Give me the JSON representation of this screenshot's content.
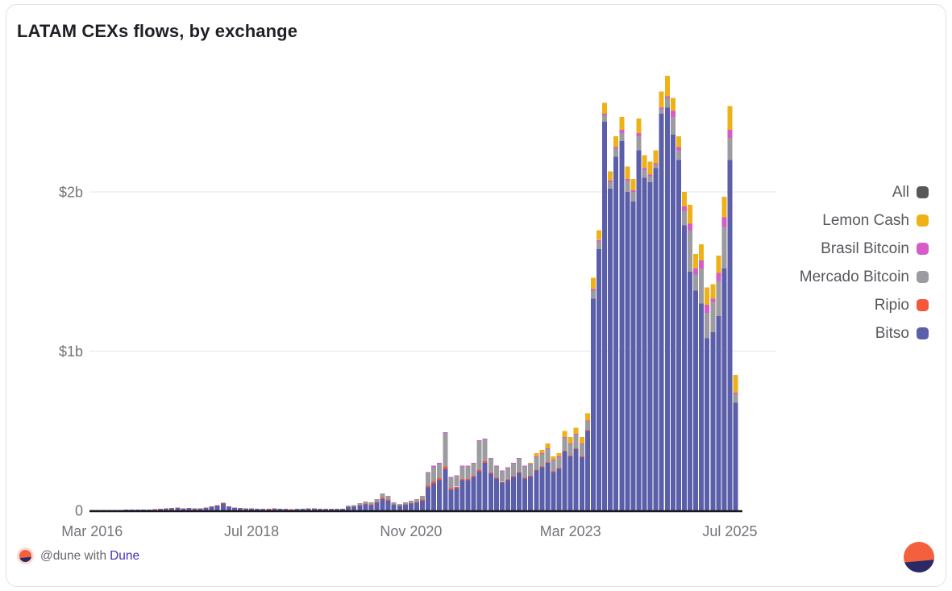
{
  "card": {
    "title": "LATAM CEXs flows, by exchange"
  },
  "footer": {
    "attribution_prefix": "@dune with",
    "attribution_link": "Dune"
  },
  "colors": {
    "background": "#ffffff",
    "card_border": "#dfe0e8",
    "title": "#1f2026",
    "axis_line": "#19181d",
    "gridline": "#e7e9ee",
    "axis_label": "#71747a",
    "legend_label": "#55575c",
    "link": "#4334b1",
    "logo_orange": "#f4603e",
    "logo_navy": "#2b2a66",
    "logo_ring": "#fbd9cf"
  },
  "chart_data": {
    "type": "bar",
    "stacked": true,
    "title": "LATAM CEXs flows, by exchange",
    "x_start": "Mar 2016",
    "x_frequency": "monthly",
    "x_month_count": 114,
    "x_tick_labels": [
      "Mar 2016",
      "Jul 2018",
      "Nov 2020",
      "Mar 2023",
      "Jul 2025"
    ],
    "x_tick_month_indices": [
      0,
      28,
      56,
      84,
      112
    ],
    "y_axis": {
      "unit": "USD billions",
      "ylim": [
        0,
        2.85
      ],
      "ticks": [
        {
          "label": "0",
          "value": 0
        },
        {
          "label": "$1b",
          "value": 1
        },
        {
          "label": "$2b",
          "value": 2
        }
      ]
    },
    "grid": "horizontal",
    "legend_position": "right",
    "legend": [
      {
        "label": "All",
        "color": "#58585a"
      },
      {
        "label": "Lemon Cash",
        "color": "#efb118"
      },
      {
        "label": "Brasil Bitcoin",
        "color": "#d65cc8"
      },
      {
        "label": "Mercado Bitcoin",
        "color": "#9c9ca0"
      },
      {
        "label": "Ripio",
        "color": "#f4583b"
      },
      {
        "label": "Bitso",
        "color": "#5b5ea9"
      }
    ],
    "series_colors": {
      "All": "#58585a",
      "Lemon Cash": "#efb118",
      "Brasil Bitcoin": "#d65cc8",
      "Mercado Bitcoin": "#9c9ca0",
      "Ripio": "#f4583b",
      "Bitso": "#5b5ea9"
    },
    "stack_order_bottom_to_top": [
      "Bitso",
      "Ripio",
      "Mercado Bitcoin",
      "Brasil Bitcoin",
      "Lemon Cash"
    ],
    "values_billions_by_month": [
      [
        0.002,
        0,
        0,
        0,
        0
      ],
      [
        0.002,
        0,
        0,
        0,
        0
      ],
      [
        0.003,
        0,
        0,
        0,
        0
      ],
      [
        0.003,
        0,
        0,
        0,
        0
      ],
      [
        0.003,
        0,
        0,
        0,
        0
      ],
      [
        0.003,
        0,
        0,
        0,
        0
      ],
      [
        0.004,
        0,
        0,
        0,
        0
      ],
      [
        0.004,
        0,
        0,
        0,
        0
      ],
      [
        0.004,
        0,
        0,
        0,
        0
      ],
      [
        0.005,
        0,
        0,
        0,
        0
      ],
      [
        0.005,
        0.001,
        0,
        0,
        0
      ],
      [
        0.006,
        0.001,
        0,
        0,
        0
      ],
      [
        0.008,
        0.001,
        0,
        0,
        0
      ],
      [
        0.01,
        0.002,
        0,
        0,
        0
      ],
      [
        0.013,
        0.002,
        0,
        0,
        0
      ],
      [
        0.015,
        0.002,
        0,
        0,
        0
      ],
      [
        0.01,
        0.002,
        0,
        0,
        0
      ],
      [
        0.013,
        0.002,
        0,
        0,
        0
      ],
      [
        0.01,
        0.002,
        0,
        0,
        0
      ],
      [
        0.01,
        0.002,
        0,
        0,
        0
      ],
      [
        0.015,
        0.003,
        0,
        0,
        0
      ],
      [
        0.022,
        0.003,
        0,
        0,
        0
      ],
      [
        0.028,
        0.004,
        0,
        0,
        0
      ],
      [
        0.042,
        0.005,
        0,
        0,
        0
      ],
      [
        0.022,
        0.004,
        0,
        0,
        0
      ],
      [
        0.015,
        0.003,
        0,
        0,
        0
      ],
      [
        0.012,
        0.002,
        0,
        0,
        0
      ],
      [
        0.01,
        0.002,
        0,
        0,
        0
      ],
      [
        0.01,
        0.002,
        0,
        0,
        0
      ],
      [
        0.009,
        0.002,
        0,
        0,
        0
      ],
      [
        0.008,
        0.001,
        0,
        0,
        0
      ],
      [
        0.008,
        0.001,
        0,
        0,
        0
      ],
      [
        0.011,
        0.002,
        0,
        0,
        0
      ],
      [
        0.009,
        0.002,
        0,
        0,
        0
      ],
      [
        0.008,
        0.001,
        0,
        0,
        0
      ],
      [
        0.007,
        0.001,
        0,
        0,
        0
      ],
      [
        0.008,
        0.001,
        0,
        0,
        0
      ],
      [
        0.009,
        0.002,
        0,
        0,
        0
      ],
      [
        0.011,
        0.002,
        0,
        0,
        0
      ],
      [
        0.011,
        0.002,
        0,
        0,
        0
      ],
      [
        0.009,
        0.002,
        0,
        0,
        0
      ],
      [
        0.008,
        0.002,
        0,
        0,
        0
      ],
      [
        0.008,
        0.001,
        0,
        0,
        0
      ],
      [
        0.008,
        0.002,
        0,
        0,
        0
      ],
      [
        0.009,
        0.002,
        0,
        0,
        0
      ],
      [
        0.02,
        0.003,
        0.007,
        0,
        0
      ],
      [
        0.022,
        0.003,
        0.008,
        0,
        0
      ],
      [
        0.03,
        0.004,
        0.011,
        0,
        0
      ],
      [
        0.038,
        0.005,
        0.013,
        0,
        0
      ],
      [
        0.034,
        0.004,
        0.012,
        0,
        0
      ],
      [
        0.048,
        0.005,
        0.017,
        0,
        0
      ],
      [
        0.07,
        0.01,
        0.027,
        0,
        0
      ],
      [
        0.06,
        0.008,
        0.022,
        0,
        0
      ],
      [
        0.035,
        0.004,
        0.011,
        0,
        0
      ],
      [
        0.028,
        0.003,
        0.009,
        0,
        0
      ],
      [
        0.035,
        0.004,
        0.011,
        0,
        0
      ],
      [
        0.042,
        0.004,
        0.014,
        0,
        0
      ],
      [
        0.049,
        0.005,
        0.016,
        0,
        0
      ],
      [
        0.062,
        0.006,
        0.022,
        0,
        0
      ],
      [
        0.145,
        0.01,
        0.08,
        0.005,
        0
      ],
      [
        0.17,
        0.012,
        0.09,
        0.008,
        0
      ],
      [
        0.19,
        0.012,
        0.09,
        0.008,
        0
      ],
      [
        0.26,
        0.015,
        0.21,
        0.005,
        0
      ],
      [
        0.13,
        0.01,
        0.065,
        0.005,
        0
      ],
      [
        0.14,
        0.008,
        0.067,
        0.005,
        0
      ],
      [
        0.19,
        0.008,
        0.077,
        0.005,
        0
      ],
      [
        0.19,
        0.008,
        0.077,
        0.005,
        0
      ],
      [
        0.21,
        0.008,
        0.077,
        0.005,
        0
      ],
      [
        0.245,
        0.01,
        0.18,
        0.005,
        0
      ],
      [
        0.3,
        0.01,
        0.135,
        0.005,
        0
      ],
      [
        0.23,
        0.008,
        0.087,
        0.005,
        0
      ],
      [
        0.2,
        0.006,
        0.069,
        0.005,
        0
      ],
      [
        0.175,
        0.006,
        0.064,
        0.005,
        0
      ],
      [
        0.19,
        0.006,
        0.069,
        0.005,
        0
      ],
      [
        0.21,
        0.006,
        0.079,
        0.005,
        0
      ],
      [
        0.235,
        0.006,
        0.084,
        0.005,
        0
      ],
      [
        0.2,
        0.005,
        0.07,
        0.005,
        0
      ],
      [
        0.213,
        0.005,
        0.072,
        0.005,
        0.005
      ],
      [
        0.25,
        0.005,
        0.08,
        0.005,
        0.02
      ],
      [
        0.27,
        0.005,
        0.08,
        0.005,
        0.02
      ],
      [
        0.3,
        0.005,
        0.08,
        0.005,
        0.03
      ],
      [
        0.24,
        0.005,
        0.07,
        0.005,
        0.02
      ],
      [
        0.26,
        0.005,
        0.07,
        0.005,
        0.02
      ],
      [
        0.37,
        0.005,
        0.08,
        0.005,
        0.04
      ],
      [
        0.34,
        0.005,
        0.07,
        0.005,
        0.04
      ],
      [
        0.385,
        0.005,
        0.085,
        0.005,
        0.04
      ],
      [
        0.335,
        0.004,
        0.076,
        0.005,
        0.04
      ],
      [
        0.5,
        0.004,
        0.056,
        0.005,
        0.045
      ],
      [
        1.33,
        0,
        0.05,
        0.01,
        0.07
      ],
      [
        1.64,
        0,
        0.05,
        0.01,
        0.06
      ],
      [
        2.44,
        0,
        0.04,
        0.01,
        0.07
      ],
      [
        2.02,
        0,
        0.04,
        0.01,
        0.06
      ],
      [
        2.22,
        0,
        0.05,
        0.01,
        0.07
      ],
      [
        2.32,
        0,
        0.05,
        0.02,
        0.08
      ],
      [
        2.0,
        0,
        0.07,
        0.01,
        0.08
      ],
      [
        1.94,
        0,
        0.06,
        0.01,
        0.07
      ],
      [
        2.26,
        0,
        0.09,
        0.02,
        0.09
      ],
      [
        2.09,
        0,
        0.05,
        0.01,
        0.08
      ],
      [
        2.06,
        0,
        0.04,
        0.01,
        0.08
      ],
      [
        2.15,
        0,
        0.02,
        0.01,
        0.08
      ],
      [
        2.49,
        0,
        0.03,
        0.01,
        0.1
      ],
      [
        2.53,
        0,
        0.06,
        0.01,
        0.13
      ],
      [
        2.36,
        0,
        0.11,
        0.04,
        0.08
      ],
      [
        2.2,
        0,
        0.06,
        0.02,
        0.07
      ],
      [
        1.79,
        0,
        0.09,
        0.03,
        0.09
      ],
      [
        1.5,
        0,
        0.26,
        0.04,
        0.12
      ],
      [
        1.38,
        0,
        0.1,
        0.04,
        0.09
      ],
      [
        1.3,
        0,
        0.22,
        0.05,
        0.1
      ],
      [
        1.08,
        0,
        0.16,
        0.05,
        0.11
      ],
      [
        1.12,
        0,
        0.19,
        0.02,
        0.09
      ],
      [
        1.22,
        0,
        0.22,
        0.05,
        0.11
      ],
      [
        1.52,
        0,
        0.26,
        0.06,
        0.13
      ],
      [
        2.2,
        0,
        0.14,
        0.05,
        0.15
      ],
      [
        0.675,
        0,
        0.06,
        0.005,
        0.11
      ]
    ]
  }
}
